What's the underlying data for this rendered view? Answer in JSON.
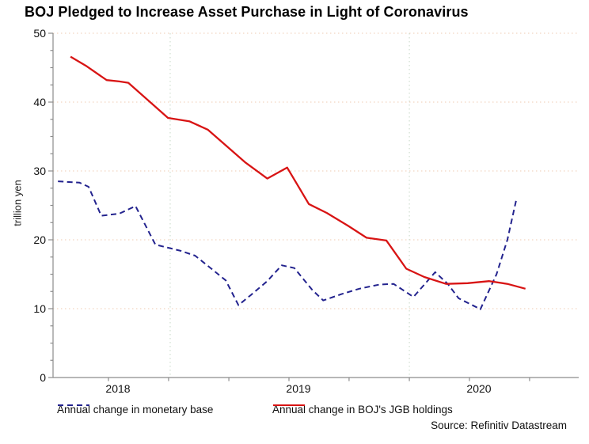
{
  "title": "BOJ Pledged to Increase Asset Purchase in Light of Coronavirus",
  "source": "Source: Refinitiv Datastream",
  "colors": {
    "monetary_base_line": "#23238e",
    "jgb_holdings_line": "#d81414",
    "h_gridline": "#efcbb2",
    "v_gridline": "#c6d8c6",
    "axis": "#8c8c8c",
    "tick": "#8c8c8c",
    "text": "#111111"
  },
  "y_axis": {
    "label": "trillion yen",
    "ticks": [
      0,
      10,
      20,
      30,
      40,
      50
    ],
    "minor_step": 2.5,
    "min": 0,
    "max": 50
  },
  "x_axis": {
    "year_labels": [
      {
        "label": "2018",
        "t": 2018
      },
      {
        "label": "2019",
        "t": 2019
      },
      {
        "label": "2020",
        "t": 2020
      }
    ],
    "tick_ts": [
      2018,
      2018.333,
      2018.667,
      2019,
      2019.333,
      2019.667,
      2020,
      2020.333
    ],
    "grid_ts": [
      2018.342,
      2019.667
    ]
  },
  "legend": [
    {
      "label": "Annual change in monetary base",
      "color": "#23238e",
      "dashed": true
    },
    {
      "label": "Annual change in BOJ's JGB holdings",
      "color": "#d81414",
      "dashed": false
    }
  ],
  "chart_data": {
    "type": "line",
    "title": "BOJ Pledged to Increase Asset Purchase in Light of Coronavirus",
    "ylabel": "trillion yen",
    "ylim": [
      0,
      50
    ],
    "xlim_decimal_years": [
      2017.68,
      2020.61
    ],
    "grid": "dotted",
    "legend_position": "bottom",
    "x_unit": "decimal year (monthly observations)",
    "series": [
      {
        "name": "Annual change in monetary base",
        "color": "#23238e",
        "style": "dashed",
        "points": [
          [
            2017.72,
            28.5
          ],
          [
            2017.84,
            28.3
          ],
          [
            2017.89,
            27.7
          ],
          [
            2017.96,
            23.5
          ],
          [
            2018.06,
            23.8
          ],
          [
            2018.15,
            24.9
          ],
          [
            2018.26,
            19.3
          ],
          [
            2018.4,
            18.4
          ],
          [
            2018.48,
            17.7
          ],
          [
            2018.58,
            15.6
          ],
          [
            2018.65,
            14.1
          ],
          [
            2018.72,
            10.5
          ],
          [
            2018.79,
            12.0
          ],
          [
            2018.88,
            14.0
          ],
          [
            2018.96,
            16.3
          ],
          [
            2019.03,
            15.9
          ],
          [
            2019.13,
            12.7
          ],
          [
            2019.19,
            11.2
          ],
          [
            2019.29,
            12.1
          ],
          [
            2019.39,
            12.9
          ],
          [
            2019.5,
            13.5
          ],
          [
            2019.58,
            13.6
          ],
          [
            2019.69,
            11.7
          ],
          [
            2019.81,
            15.3
          ],
          [
            2019.88,
            13.6
          ],
          [
            2019.94,
            11.5
          ],
          [
            2020.04,
            10.2
          ],
          [
            2020.06,
            9.9
          ],
          [
            2020.15,
            15.0
          ],
          [
            2020.21,
            20.0
          ],
          [
            2020.26,
            25.9
          ]
        ]
      },
      {
        "name": "Annual change in BOJ's JGB holdings",
        "color": "#d81414",
        "style": "solid",
        "points": [
          [
            2017.79,
            46.6
          ],
          [
            2017.88,
            45.2
          ],
          [
            2017.99,
            43.2
          ],
          [
            2018.06,
            43.0
          ],
          [
            2018.11,
            42.8
          ],
          [
            2018.33,
            37.7
          ],
          [
            2018.45,
            37.2
          ],
          [
            2018.55,
            36.0
          ],
          [
            2018.69,
            32.8
          ],
          [
            2018.76,
            31.2
          ],
          [
            2018.88,
            28.9
          ],
          [
            2018.99,
            30.5
          ],
          [
            2019.11,
            25.2
          ],
          [
            2019.21,
            23.9
          ],
          [
            2019.33,
            22.0
          ],
          [
            2019.43,
            20.3
          ],
          [
            2019.54,
            19.9
          ],
          [
            2019.65,
            15.8
          ],
          [
            2019.75,
            14.6
          ],
          [
            2019.87,
            13.6
          ],
          [
            2019.99,
            13.7
          ],
          [
            2020.11,
            14.0
          ],
          [
            2020.21,
            13.6
          ],
          [
            2020.31,
            12.9
          ]
        ]
      }
    ]
  }
}
